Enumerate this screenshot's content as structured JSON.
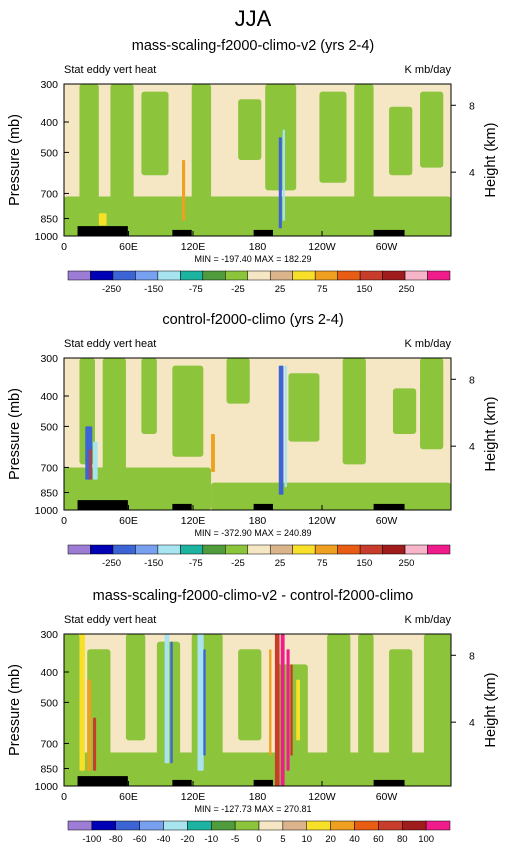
{
  "figure_title": "JJA",
  "colors": {
    "bg_field": "#f5e6c4",
    "green": "#8cc43c",
    "cyan": "#a8e4f0",
    "blue": "#3c64d4",
    "orange": "#f0a020",
    "red": "#c83c2c",
    "pink": "#f01c8c",
    "yellow": "#f8e028",
    "tan": "#dcb48c",
    "black": "#000000"
  },
  "chart_data": [
    {
      "type": "heatmap",
      "title": "mass-scaling-f2000-climo-v2 (yrs 2-4)",
      "left_label": "Stat eddy vert heat",
      "right_label": "K mb/day",
      "ylabel": "Pressure (mb)",
      "ylabel_right": "Height (km)",
      "x_ticks": [
        "0",
        "60E",
        "120E",
        "180",
        "120W",
        "60W"
      ],
      "y_ticks": [
        "300",
        "400",
        "500",
        "700",
        "850",
        "1000"
      ],
      "height_ticks": [
        "8",
        "4"
      ],
      "stats": "MIN = -197.40   MAX = 182.29",
      "min": -197.4,
      "max": 182.29,
      "colorbar_labels": [
        "-250",
        "-150",
        "-75",
        "-25",
        "25",
        "75",
        "150",
        "250"
      ],
      "colorbar_colors": [
        "#9c7cd4",
        "#0000b4",
        "#3c64d4",
        "#78a0f0",
        "#a8e4f0",
        "#1cb4a0",
        "#509c3c",
        "#8cc43c",
        "#f5e6c4",
        "#dcb48c",
        "#f8e028",
        "#f0a020",
        "#e85c14",
        "#c83c2c",
        "#a01c1c",
        "#f8b4c8",
        "#f01c8c"
      ]
    },
    {
      "type": "heatmap",
      "title": "control-f2000-climo (yrs 2-4)",
      "left_label": "Stat eddy vert heat",
      "right_label": "K mb/day",
      "ylabel": "Pressure (mb)",
      "ylabel_right": "Height (km)",
      "x_ticks": [
        "0",
        "60E",
        "120E",
        "180",
        "120W",
        "60W"
      ],
      "y_ticks": [
        "300",
        "400",
        "500",
        "700",
        "850",
        "1000"
      ],
      "height_ticks": [
        "8",
        "4"
      ],
      "stats": "MIN = -372.90   MAX = 240.89",
      "min": -372.9,
      "max": 240.89,
      "colorbar_labels": [
        "-250",
        "-150",
        "-75",
        "-25",
        "25",
        "75",
        "150",
        "250"
      ],
      "colorbar_colors": [
        "#9c7cd4",
        "#0000b4",
        "#3c64d4",
        "#78a0f0",
        "#a8e4f0",
        "#1cb4a0",
        "#509c3c",
        "#8cc43c",
        "#f5e6c4",
        "#dcb48c",
        "#f8e028",
        "#f0a020",
        "#e85c14",
        "#c83c2c",
        "#a01c1c",
        "#f8b4c8",
        "#f01c8c"
      ]
    },
    {
      "type": "heatmap",
      "title": "mass-scaling-f2000-climo-v2 - control-f2000-climo",
      "left_label": "Stat eddy vert heat",
      "right_label": "K mb/day",
      "ylabel": "Pressure (mb)",
      "ylabel_right": "Height (km)",
      "x_ticks": [
        "0",
        "60E",
        "120E",
        "180",
        "120W",
        "60W"
      ],
      "y_ticks": [
        "300",
        "400",
        "500",
        "700",
        "850",
        "1000"
      ],
      "height_ticks": [
        "8",
        "4"
      ],
      "stats": "MIN = -127.73   MAX = 270.81",
      "min": -127.73,
      "max": 270.81,
      "colorbar_labels": [
        "-100",
        "-80",
        "-60",
        "-40",
        "-20",
        "-10",
        "-5",
        "0",
        "5",
        "10",
        "20",
        "40",
        "60",
        "80",
        "100"
      ],
      "colorbar_colors": [
        "#9c7cd4",
        "#0000b4",
        "#3c64d4",
        "#78a0f0",
        "#a8e4f0",
        "#1cb4a0",
        "#509c3c",
        "#8cc43c",
        "#f5e6c4",
        "#dcb48c",
        "#f8e028",
        "#f0a020",
        "#e85c14",
        "#c83c2c",
        "#a01c1c",
        "#f01c8c"
      ]
    }
  ]
}
